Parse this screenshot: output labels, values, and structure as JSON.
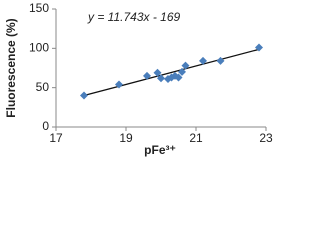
{
  "chart_data": {
    "type": "scatter",
    "x_label": "pFe³⁺",
    "y_label": "Fluorescence (%)",
    "annotation": "y = 11.743x - 169",
    "trendline": {
      "slope": 11.743,
      "intercept": -169,
      "color": "#111111"
    },
    "series": [
      {
        "name": "Fluorescence",
        "color": "#4a7ebb",
        "x": [
          17.8,
          18.8,
          19.6,
          19.9,
          20.0,
          20.2,
          20.3,
          20.4,
          20.5,
          20.6,
          20.7,
          21.2,
          21.7,
          22.8
        ],
        "values": [
          40,
          54,
          65,
          69,
          62,
          61,
          63,
          65,
          63,
          70,
          78,
          84,
          84,
          101
        ]
      }
    ],
    "xlim": [
      17,
      23
    ],
    "xticks": [
      17,
      19,
      21,
      23
    ],
    "ylim": [
      0,
      150
    ],
    "yticks": [
      0,
      50,
      100,
      150
    ],
    "grid": false
  }
}
